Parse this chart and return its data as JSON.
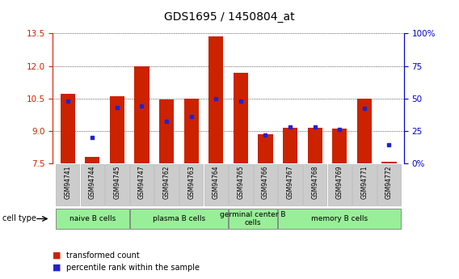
{
  "title": "GDS1695 / 1450804_at",
  "samples": [
    "GSM94741",
    "GSM94744",
    "GSM94745",
    "GSM94747",
    "GSM94762",
    "GSM94763",
    "GSM94764",
    "GSM94765",
    "GSM94766",
    "GSM94767",
    "GSM94768",
    "GSM94769",
    "GSM94771",
    "GSM94772"
  ],
  "red_values": [
    10.7,
    7.8,
    10.6,
    12.0,
    10.45,
    10.5,
    13.35,
    11.7,
    8.85,
    9.15,
    9.15,
    9.1,
    10.5,
    7.55
  ],
  "blue_values_pct": [
    48,
    20,
    43,
    44,
    32,
    36,
    50,
    48,
    22,
    28,
    28,
    26,
    42,
    14
  ],
  "ymin": 7.5,
  "ymax": 13.5,
  "yticks_left": [
    7.5,
    9.0,
    10.5,
    12.0,
    13.5
  ],
  "yticks_right_vals": [
    0,
    25,
    50,
    75,
    100
  ],
  "yticks_right_labels": [
    "0%",
    "25",
    "50",
    "75",
    "100%"
  ],
  "group_boundaries": [
    {
      "label": "naive B cells",
      "start": 0,
      "end": 2
    },
    {
      "label": "plasma B cells",
      "start": 3,
      "end": 6
    },
    {
      "label": "germinal center B\ncells",
      "start": 7,
      "end": 8
    },
    {
      "label": "memory B cells",
      "start": 9,
      "end": 13
    }
  ],
  "bar_color": "#cc2200",
  "blue_color": "#2222cc",
  "axis_color_left": "#cc2200",
  "axis_color_right": "#0000cc",
  "group_color": "#99ee99",
  "xtick_bg": "#cccccc",
  "plot_bg": "#ffffff"
}
